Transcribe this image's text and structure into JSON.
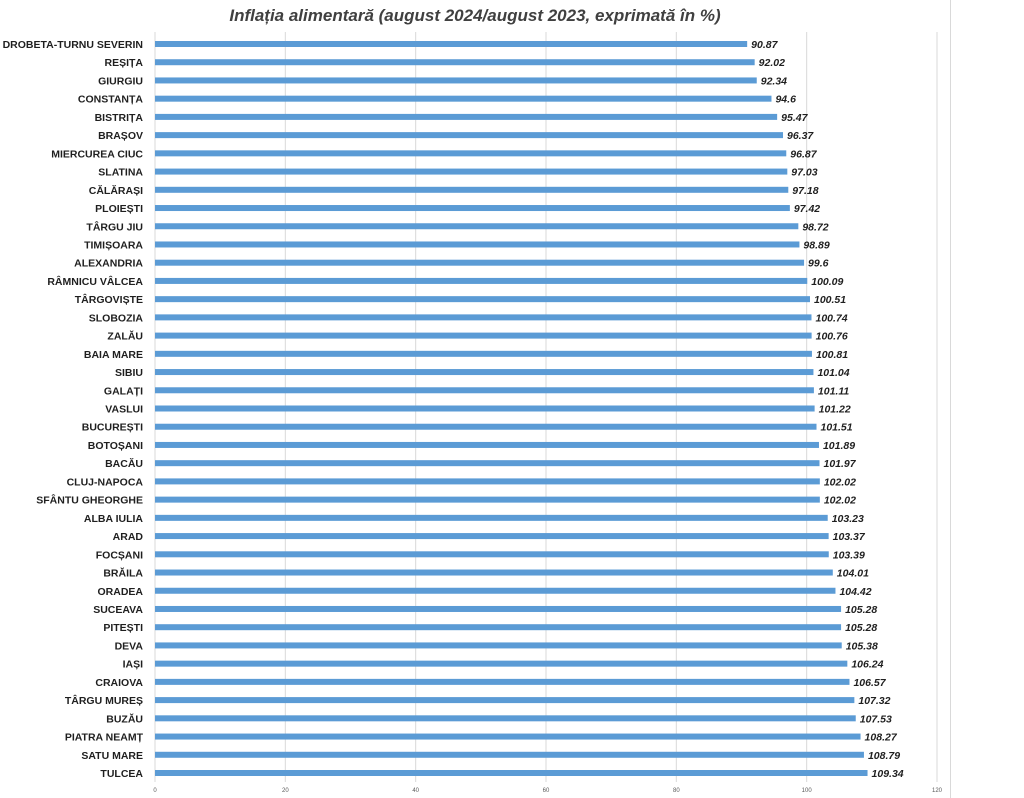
{
  "chart_data": {
    "type": "bar",
    "orientation": "horizontal",
    "title": "Inflația alimentară (august 2024/august 2023, exprimată în %)",
    "categories": [
      "DROBETA-TURNU SEVERIN",
      "REȘIȚA",
      "GIURGIU",
      "CONSTANȚA",
      "BISTRIȚA",
      "BRAȘOV",
      "MIERCUREA CIUC",
      "SLATINA",
      "CĂLĂRAȘI",
      "PLOIEȘTI",
      "TÂRGU JIU",
      "TIMIȘOARA",
      "ALEXANDRIA",
      "RÂMNICU VÂLCEA",
      "TÂRGOVIȘTE",
      "SLOBOZIA",
      "ZALĂU",
      "BAIA MARE",
      "SIBIU",
      "GALAȚI",
      "VASLUI",
      "BUCUREȘTI",
      "BOTOȘANI",
      "BACĂU",
      "CLUJ-NAPOCA",
      "SFÂNTU GHEORGHE",
      "ALBA IULIA",
      "ARAD",
      "FOCȘANI",
      "BRĂILA",
      "ORADEA",
      "SUCEAVA",
      "PITEȘTI",
      "DEVA",
      "IAȘI",
      "CRAIOVA",
      "TÂRGU MUREȘ",
      "BUZĂU",
      "PIATRA NEAMȚ",
      "SATU MARE",
      "TULCEA"
    ],
    "values": [
      90.87,
      92.02,
      92.34,
      94.6,
      95.47,
      96.37,
      96.87,
      97.03,
      97.18,
      97.42,
      98.72,
      98.89,
      99.6,
      100.09,
      100.51,
      100.74,
      100.76,
      100.81,
      101.04,
      101.11,
      101.22,
      101.51,
      101.89,
      101.97,
      102.02,
      102.02,
      103.23,
      103.37,
      103.39,
      104.01,
      104.42,
      105.28,
      105.28,
      105.38,
      106.24,
      106.57,
      107.32,
      107.53,
      108.27,
      108.79,
      109.34
    ],
    "xlim": [
      0,
      120
    ],
    "xticks": [
      0,
      20,
      40,
      60,
      80,
      100,
      120
    ],
    "grid": true,
    "data_labels": true,
    "bar_color": "#5b9bd5",
    "grid_color": "#d9d9d9"
  }
}
